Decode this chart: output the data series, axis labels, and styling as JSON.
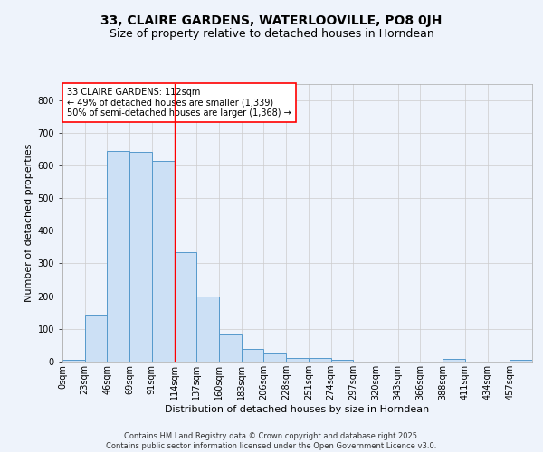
{
  "title1": "33, CLAIRE GARDENS, WATERLOOVILLE, PO8 0JH",
  "title2": "Size of property relative to detached houses in Horndean",
  "xlabel": "Distribution of detached houses by size in Horndean",
  "ylabel": "Number of detached properties",
  "bin_labels": [
    "0sqm",
    "23sqm",
    "46sqm",
    "69sqm",
    "91sqm",
    "114sqm",
    "137sqm",
    "160sqm",
    "183sqm",
    "206sqm",
    "228sqm",
    "251sqm",
    "274sqm",
    "297sqm",
    "320sqm",
    "343sqm",
    "366sqm",
    "388sqm",
    "411sqm",
    "434sqm",
    "457sqm"
  ],
  "bar_heights": [
    5,
    140,
    645,
    640,
    615,
    335,
    198,
    82,
    40,
    26,
    10,
    10,
    5,
    0,
    0,
    0,
    0,
    7,
    0,
    0,
    5
  ],
  "bar_color": "#cce0f5",
  "bar_edge_color": "#5599cc",
  "vline_x": 5,
  "vline_color": "red",
  "annotation_text": "33 CLAIRE GARDENS: 112sqm\n← 49% of detached houses are smaller (1,339)\n50% of semi-detached houses are larger (1,368) →",
  "annotation_box_color": "white",
  "annotation_box_edge_color": "red",
  "ylim": [
    0,
    850
  ],
  "yticks": [
    0,
    100,
    200,
    300,
    400,
    500,
    600,
    700,
    800
  ],
  "background_color": "#eef3fb",
  "footer_text": "Contains HM Land Registry data © Crown copyright and database right 2025.\nContains public sector information licensed under the Open Government Licence v3.0.",
  "title1_fontsize": 10,
  "title2_fontsize": 9,
  "axis_label_fontsize": 8,
  "tick_fontsize": 7,
  "annotation_fontsize": 7,
  "footer_fontsize": 6
}
